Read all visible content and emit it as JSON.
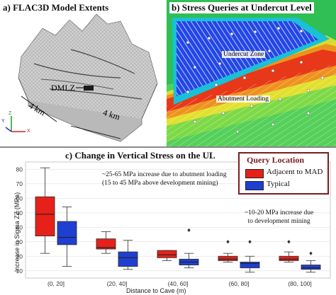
{
  "panel_a": {
    "title": "a) FLAC3D Model Extents",
    "feature_label": "DMLZ",
    "dim_left": "4 km",
    "dim_right": "4 km",
    "axis_labels": [
      "Y",
      "Z",
      "X"
    ]
  },
  "panel_b": {
    "title": "b) Stress Queries at Undercut Level",
    "zone_1": "Undercut Zone",
    "zone_2": "Abutment Loading"
  },
  "panel_c": {
    "title": "c) Change in Vertical Stress on the UL",
    "ylabel_line1": "Increase in Sigma ZZ (MPa)",
    "ylabel_line2": "",
    "annotation_1_line1": "~25-65 MPa increase due to abutment loading",
    "annotation_1_line2": "(15 to 45 MPa above development mining)",
    "annotation_2_line1": "~10-20 MPa increase due",
    "annotation_2_line2": "to development mining",
    "legend_title": "Query Location"
  },
  "chart_data": {
    "type": "box",
    "title": "c) Change in Vertical Stress on the UL",
    "xlabel": "Distance to Cave (m)",
    "ylabel": "Increase in Sigma ZZ (MPa)",
    "categories": [
      "(0, 20]",
      "(20, 40]",
      "(40, 60]",
      "(60, 80]",
      "(80, 100]"
    ],
    "ylim": [
      5,
      85
    ],
    "yticks": [
      10,
      20,
      30,
      40,
      50,
      60,
      70,
      80
    ],
    "legend_position": "top-right",
    "series": [
      {
        "name": "Adjacent to MAD",
        "color": "#e8201a",
        "boxes": [
          {
            "whislo": 22,
            "q1": 34,
            "med": 49,
            "q3": 61,
            "whishi": 81,
            "fliers": []
          },
          {
            "whislo": 22,
            "q1": 25,
            "med": 26,
            "q3": 32,
            "whishi": 37,
            "fliers": []
          },
          {
            "whislo": 17,
            "q1": 19,
            "med": 21,
            "q3": 24,
            "whishi": 24,
            "fliers": []
          },
          {
            "whislo": 16,
            "q1": 17,
            "med": 18,
            "q3": 20,
            "whishi": 22,
            "fliers": [
              30
            ]
          },
          {
            "whislo": 16,
            "q1": 17,
            "med": 18,
            "q3": 20,
            "whishi": 23,
            "fliers": [
              30
            ]
          }
        ]
      },
      {
        "name": "Typical",
        "color": "#1f3fd1",
        "boxes": [
          {
            "whislo": 13,
            "q1": 28,
            "med": 33,
            "q3": 44,
            "whishi": 54,
            "fliers": []
          },
          {
            "whislo": 11,
            "q1": 13,
            "med": 19,
            "q3": 23,
            "whishi": 31,
            "fliers": []
          },
          {
            "whislo": 12,
            "q1": 14,
            "med": 16,
            "q3": 18,
            "whishi": 22,
            "fliers": [
              38
            ]
          },
          {
            "whislo": 9,
            "q1": 12,
            "med": 15,
            "q3": 16,
            "whishi": 20,
            "fliers": [
              30
            ]
          },
          {
            "whislo": 9,
            "q1": 11,
            "med": 12,
            "q3": 14,
            "whishi": 17,
            "fliers": [
              22
            ]
          }
        ]
      }
    ]
  }
}
